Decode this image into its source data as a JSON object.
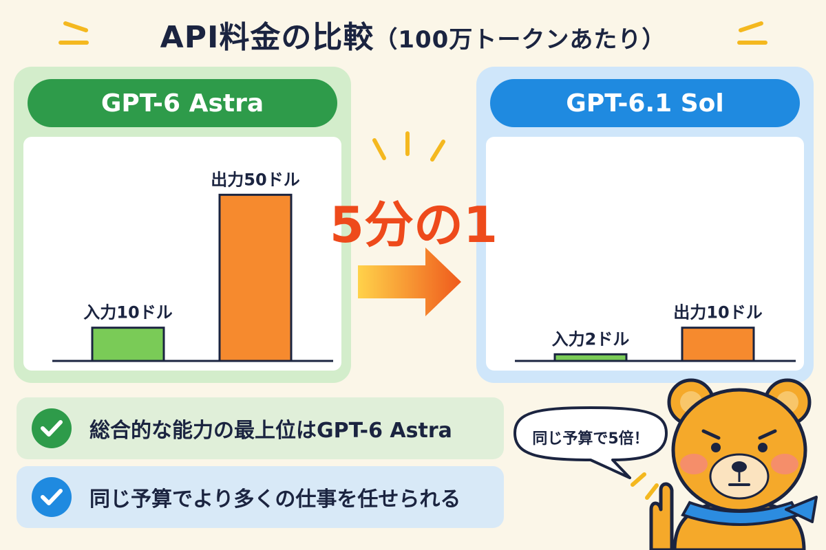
{
  "title": {
    "main": "API料金の比較",
    "paren": "（100万トークンあたり）"
  },
  "center": {
    "ratio_text": "5分の1"
  },
  "chart_data": [
    {
      "type": "bar",
      "title": "GPT-6 Astra",
      "categories": [
        "入力",
        "出力"
      ],
      "values": [
        10,
        50
      ],
      "labels": [
        "入力10ドル",
        "出力50ドル"
      ],
      "colors": [
        "#7acb57",
        "#f68a2e"
      ],
      "ylim": [
        0,
        60
      ]
    },
    {
      "type": "bar",
      "title": "GPT-6.1 Sol",
      "categories": [
        "入力",
        "出力"
      ],
      "values": [
        2,
        10
      ],
      "labels": [
        "入力2ドル",
        "出力10ドル"
      ],
      "colors": [
        "#7acb57",
        "#f68a2e"
      ],
      "ylim": [
        0,
        60
      ]
    }
  ],
  "checks": [
    {
      "text": "総合的な能力の最上位はGPT-6 Astra"
    },
    {
      "text": "同じ予算でより多くの仕事を任せられる"
    }
  ],
  "mascot": {
    "speech": "同じ予算で5倍！"
  },
  "colors": {
    "background": "#fbf6e8",
    "astra_panel": "#d3edcb",
    "astra_header": "#2e9b4a",
    "sol_panel": "#cfe6fa",
    "sol_header": "#1f8ae0",
    "input_bar": "#7acb57",
    "output_bar": "#f68a2e",
    "accent": "#ee4a1b"
  },
  "icons": [
    "sparkle-icon",
    "arrow-right-icon",
    "check-icon",
    "bear-mascot-icon"
  ]
}
